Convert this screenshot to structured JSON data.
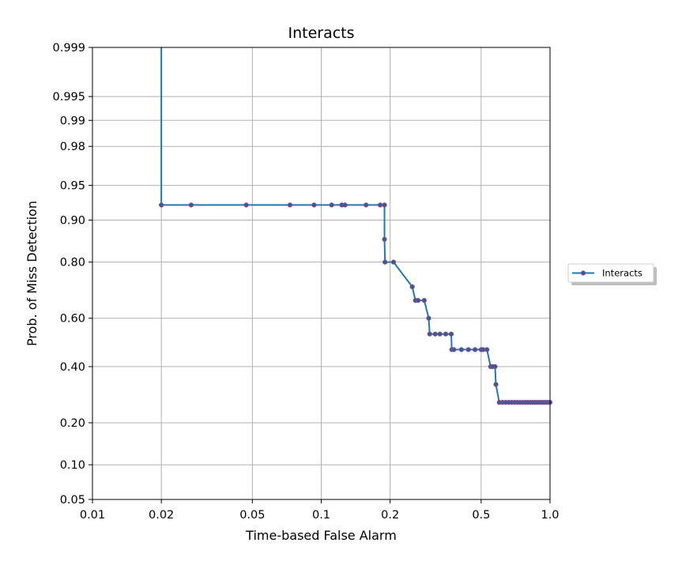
{
  "chart_data": {
    "type": "line",
    "title": "Interacts",
    "xlabel": "Time-based False Alarm",
    "ylabel": "Prob. of Miss Detection",
    "x_scale": "log",
    "y_scale": "normal-deviate (probit)",
    "xlim": [
      0.01,
      1.0
    ],
    "ylim": [
      0.05,
      0.999
    ],
    "x_ticks": [
      {
        "value": 0.01,
        "label": "0.01"
      },
      {
        "value": 0.02,
        "label": "0.02"
      },
      {
        "value": 0.05,
        "label": "0.05"
      },
      {
        "value": 0.1,
        "label": "0.1"
      },
      {
        "value": 0.2,
        "label": "0.2"
      },
      {
        "value": 0.5,
        "label": "0.5"
      },
      {
        "value": 1.0,
        "label": "1.0"
      }
    ],
    "y_ticks": [
      {
        "value": 0.05,
        "label": "0.05"
      },
      {
        "value": 0.1,
        "label": "0.10"
      },
      {
        "value": 0.2,
        "label": "0.20"
      },
      {
        "value": 0.4,
        "label": "0.40"
      },
      {
        "value": 0.6,
        "label": "0.60"
      },
      {
        "value": 0.8,
        "label": "0.80"
      },
      {
        "value": 0.9,
        "label": "0.90"
      },
      {
        "value": 0.95,
        "label": "0.95"
      },
      {
        "value": 0.98,
        "label": "0.98"
      },
      {
        "value": 0.99,
        "label": "0.99"
      },
      {
        "value": 0.995,
        "label": "0.995"
      },
      {
        "value": 0.999,
        "label": "0.999"
      }
    ],
    "grid": true,
    "legend": {
      "placement": "outside-right",
      "entries": [
        "Interacts"
      ]
    },
    "colors": {
      "line": "#1f77b4",
      "marker_edge": "#7b4d9c",
      "grid": "#b0b0b0"
    },
    "series": [
      {
        "name": "Interacts",
        "line_x": [
          0.02,
          0.02,
          0.027,
          0.047,
          0.073,
          0.093,
          0.111,
          0.123,
          0.127,
          0.157,
          0.181,
          0.189,
          0.189,
          0.19,
          0.207,
          0.25,
          0.258,
          0.265,
          0.282,
          0.295,
          0.298,
          0.315,
          0.33,
          0.35,
          0.37,
          0.372,
          0.38,
          0.41,
          0.44,
          0.47,
          0.5,
          0.51,
          0.53,
          0.55,
          0.56,
          0.575,
          0.58,
          0.6,
          0.62,
          0.64,
          0.66,
          0.68,
          0.7,
          0.72,
          0.74,
          0.76,
          0.78,
          0.8,
          0.82,
          0.84,
          0.86,
          0.88,
          0.9,
          0.92,
          0.94,
          0.96,
          0.98,
          1.0
        ],
        "line_y": [
          0.999,
          0.925,
          0.925,
          0.925,
          0.925,
          0.925,
          0.925,
          0.925,
          0.925,
          0.925,
          0.925,
          0.925,
          0.86,
          0.8,
          0.8,
          0.72,
          0.67,
          0.67,
          0.67,
          0.6,
          0.535,
          0.535,
          0.535,
          0.535,
          0.535,
          0.47,
          0.47,
          0.47,
          0.47,
          0.47,
          0.47,
          0.47,
          0.47,
          0.4,
          0.4,
          0.4,
          0.33,
          0.265,
          0.265,
          0.265,
          0.265,
          0.265,
          0.265,
          0.265,
          0.265,
          0.265,
          0.265,
          0.265,
          0.265,
          0.265,
          0.265,
          0.265,
          0.265,
          0.265,
          0.265,
          0.265,
          0.265,
          0.265
        ],
        "points_x": [
          0.02,
          0.027,
          0.047,
          0.073,
          0.093,
          0.111,
          0.123,
          0.127,
          0.157,
          0.181,
          0.189,
          0.189,
          0.19,
          0.207,
          0.25,
          0.258,
          0.265,
          0.282,
          0.295,
          0.298,
          0.315,
          0.33,
          0.35,
          0.37,
          0.372,
          0.38,
          0.41,
          0.44,
          0.47,
          0.5,
          0.51,
          0.53,
          0.55,
          0.56,
          0.575,
          0.58,
          0.6,
          0.62,
          0.64,
          0.66,
          0.68,
          0.7,
          0.72,
          0.74,
          0.76,
          0.78,
          0.8,
          0.82,
          0.84,
          0.86,
          0.88,
          0.9,
          0.92,
          0.94,
          0.96,
          0.98,
          1.0
        ],
        "points_y": [
          0.925,
          0.925,
          0.925,
          0.925,
          0.925,
          0.925,
          0.925,
          0.925,
          0.925,
          0.925,
          0.925,
          0.86,
          0.8,
          0.8,
          0.72,
          0.67,
          0.67,
          0.67,
          0.6,
          0.535,
          0.535,
          0.535,
          0.535,
          0.535,
          0.47,
          0.47,
          0.47,
          0.47,
          0.47,
          0.47,
          0.47,
          0.47,
          0.4,
          0.4,
          0.4,
          0.33,
          0.265,
          0.265,
          0.265,
          0.265,
          0.265,
          0.265,
          0.265,
          0.265,
          0.265,
          0.265,
          0.265,
          0.265,
          0.265,
          0.265,
          0.265,
          0.265,
          0.265,
          0.265,
          0.265,
          0.265,
          0.265
        ]
      }
    ]
  }
}
